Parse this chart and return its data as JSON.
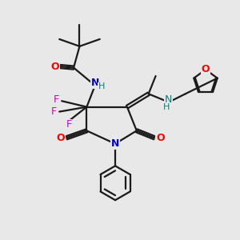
{
  "background_color": "#e8e8e8",
  "bond_color": "#1a1a1a",
  "atom_colors": {
    "O": "#ff0000",
    "N": "#0000cc",
    "F": "#cc00cc",
    "H": "#008080",
    "C": "#1a1a1a"
  },
  "figsize": [
    3.0,
    3.0
  ],
  "dpi": 100,
  "lw": 1.6
}
